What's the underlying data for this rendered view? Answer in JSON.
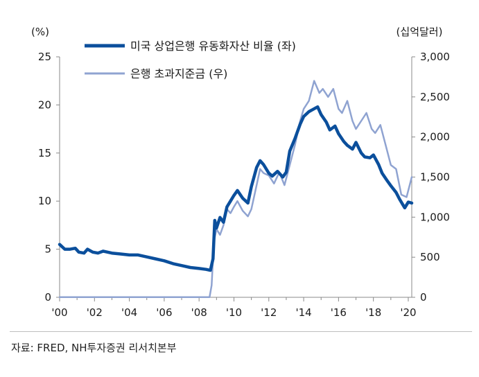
{
  "chart_data": {
    "type": "line",
    "title": "",
    "left_unit": "(%)",
    "right_unit": "(십억달러)",
    "x_tick_labels": [
      "'00",
      "'02",
      "'04",
      "'06",
      "'08",
      "'10",
      "'12",
      "'14",
      "'16",
      "'18",
      "'20"
    ],
    "x_tick_years": [
      2000,
      2002,
      2004,
      2006,
      2008,
      2010,
      2012,
      2014,
      2016,
      2018,
      2020
    ],
    "xlim": [
      2000,
      2020.2
    ],
    "left_ylim": [
      0,
      25
    ],
    "left_ticks": [
      "0",
      "5",
      "10",
      "15",
      "20",
      "25"
    ],
    "left_tick_values": [
      0,
      5,
      10,
      15,
      20,
      25
    ],
    "right_ylim": [
      0,
      3000
    ],
    "right_ticks": [
      "0",
      "500",
      "1,000",
      "1,500",
      "2,000",
      "2,500",
      "3,000"
    ],
    "right_tick_values": [
      0,
      500,
      1000,
      1500,
      2000,
      2500,
      3000
    ],
    "colors": {
      "primary": "#0b4f9c",
      "secondary": "#8fa3d1"
    },
    "series": [
      {
        "name": "미국 상업은행 유동화자산 비율 (좌)",
        "axis": "left",
        "x": [
          2000.0,
          2000.3,
          2000.6,
          2000.9,
          2001.1,
          2001.4,
          2001.6,
          2001.9,
          2002.2,
          2002.5,
          2003.0,
          2003.5,
          2004.0,
          2004.5,
          2005.0,
          2005.5,
          2006.0,
          2006.5,
          2007.0,
          2007.5,
          2008.0,
          2008.4,
          2008.65,
          2008.8,
          2008.9,
          2009.0,
          2009.2,
          2009.4,
          2009.6,
          2009.8,
          2010.0,
          2010.2,
          2010.5,
          2010.8,
          2011.0,
          2011.3,
          2011.5,
          2011.7,
          2012.0,
          2012.2,
          2012.5,
          2012.8,
          2013.0,
          2013.2,
          2013.5,
          2013.8,
          2014.0,
          2014.3,
          2014.5,
          2014.8,
          2015.0,
          2015.3,
          2015.5,
          2015.8,
          2016.0,
          2016.3,
          2016.5,
          2016.8,
          2017.0,
          2017.3,
          2017.5,
          2017.8,
          2018.0,
          2018.3,
          2018.5,
          2018.8,
          2019.0,
          2019.3,
          2019.5,
          2019.7,
          2019.8,
          2020.0,
          2020.2
        ],
        "values": [
          5.5,
          5.0,
          5.0,
          5.1,
          4.7,
          4.6,
          5.0,
          4.7,
          4.6,
          4.8,
          4.6,
          4.5,
          4.4,
          4.4,
          4.2,
          4.0,
          3.8,
          3.5,
          3.3,
          3.1,
          3.0,
          2.9,
          2.8,
          4.0,
          8.0,
          7.2,
          8.3,
          7.8,
          9.4,
          10.0,
          10.6,
          11.1,
          10.3,
          9.8,
          11.5,
          13.5,
          14.2,
          13.8,
          12.9,
          12.6,
          13.1,
          12.5,
          13.0,
          15.2,
          16.5,
          18.0,
          18.8,
          19.3,
          19.5,
          19.8,
          19.0,
          18.2,
          17.4,
          17.8,
          17.0,
          16.2,
          15.8,
          15.4,
          16.1,
          15.0,
          14.6,
          14.5,
          14.8,
          13.8,
          12.9,
          12.1,
          11.6,
          10.9,
          10.2,
          9.6,
          9.3,
          9.9,
          9.8
        ]
      },
      {
        "name": "은행 초과지준금 (우)",
        "axis": "right",
        "x": [
          2000.0,
          2002.0,
          2004.0,
          2006.0,
          2008.0,
          2008.6,
          2008.72,
          2008.85,
          2009.0,
          2009.2,
          2009.4,
          2009.6,
          2009.8,
          2010.0,
          2010.2,
          2010.5,
          2010.8,
          2011.0,
          2011.3,
          2011.5,
          2011.7,
          2012.0,
          2012.3,
          2012.6,
          2012.9,
          2013.2,
          2013.5,
          2013.8,
          2014.0,
          2014.3,
          2014.6,
          2014.9,
          2015.1,
          2015.4,
          2015.7,
          2016.0,
          2016.2,
          2016.5,
          2016.8,
          2017.0,
          2017.3,
          2017.6,
          2017.9,
          2018.1,
          2018.4,
          2018.7,
          2019.0,
          2019.3,
          2019.6,
          2019.9,
          2020.2
        ],
        "values": [
          2,
          2,
          2,
          2,
          2,
          2,
          150,
          700,
          850,
          780,
          900,
          1100,
          1050,
          1130,
          1200,
          1080,
          1010,
          1100,
          1400,
          1600,
          1550,
          1520,
          1420,
          1560,
          1400,
          1650,
          1900,
          2200,
          2350,
          2450,
          2700,
          2550,
          2600,
          2500,
          2600,
          2350,
          2300,
          2450,
          2200,
          2100,
          2200,
          2300,
          2100,
          2050,
          2150,
          1900,
          1650,
          1600,
          1280,
          1250,
          1500
        ]
      }
    ]
  },
  "legend": {
    "primary_label": "미국 상업은행 유동화자산 비율 (좌)",
    "secondary_label": "은행 초과지준금 (우)"
  },
  "source": "자료: FRED, NH투자증권 리서치본부"
}
